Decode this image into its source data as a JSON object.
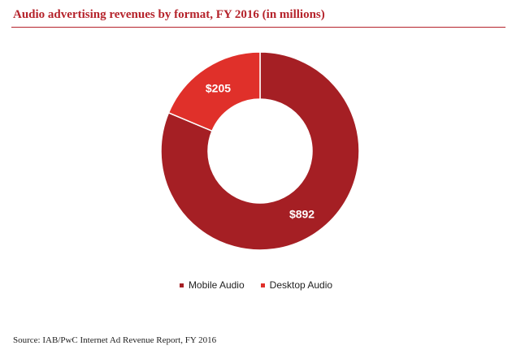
{
  "chart_data": {
    "type": "pie",
    "variant": "donut",
    "title": "Audio advertising revenues by format, FY 2016 (in millions)",
    "categories": [
      "Mobile Audio",
      "Desktop Audio"
    ],
    "values": [
      892,
      205
    ],
    "data_labels": [
      "$892",
      "$205"
    ],
    "colors": [
      "#a51f24",
      "#e0302a"
    ],
    "legend_position": "bottom"
  },
  "source": "Source: IAB/PwC Internet Ad Revenue Report, FY 2016"
}
